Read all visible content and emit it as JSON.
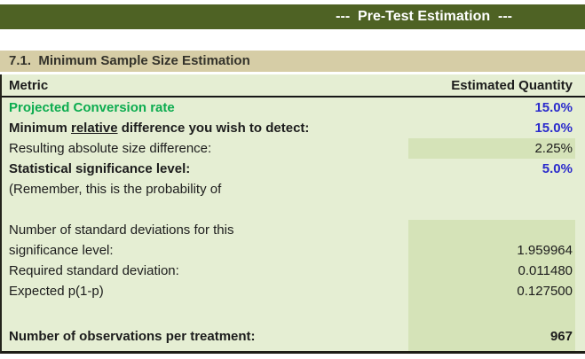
{
  "title_bar": {
    "text": "---  Pre-Test Estimation  ---"
  },
  "section": {
    "heading": "7.1.  Minimum Sample Size Estimation"
  },
  "table": {
    "columns": {
      "metric": "Metric",
      "quantity": "Estimated Quantity"
    },
    "rows": [
      {
        "label": "Projected Conversion rate",
        "value": "15.0%"
      },
      {
        "label_parts": {
          "pre": "Minimum ",
          "underlined": "relative",
          "post": " difference you wish to detect:"
        },
        "value": "15.0%"
      },
      {
        "label": "Resulting absolute size difference:",
        "value": "2.25%"
      },
      {
        "label": "Statistical significance level:",
        "value": "5.0%"
      },
      {
        "label": "(Remember, this is the probability of",
        "value": ""
      },
      {
        "label": "",
        "value": ""
      },
      {
        "label": "Number of standard deviations for this",
        "value": ""
      },
      {
        "label": "significance level:",
        "value": "1.959964"
      },
      {
        "label": "Required standard deviation:",
        "value": "0.011480"
      },
      {
        "label": "Expected p(1-p)",
        "value": "0.127500"
      },
      {
        "label": "",
        "value": ""
      },
      {
        "label": "Number of observations per treatment:",
        "value": "967"
      }
    ]
  },
  "icons": [
    {
      "name": "comment-indicator-icon",
      "meaning": "cell comment marker (red corner triangle)"
    }
  ],
  "colors": {
    "olive_header": "#4E6224",
    "tan_band": "#D6CDA6",
    "sheet_bg": "#E5EED3",
    "shaded_cell": "#D5E3B8",
    "input_blue": "#2B2BCC",
    "label_green": "#0CAC4F",
    "comment_red": "#E8262A",
    "text_dark": "#1C1C1C"
  }
}
